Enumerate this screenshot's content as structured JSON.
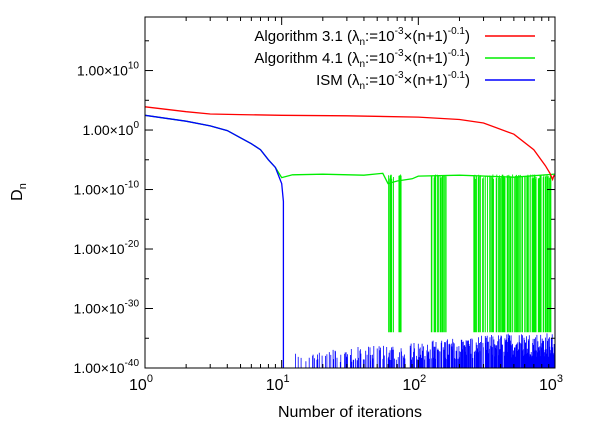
{
  "chart_data": {
    "type": "line",
    "xlabel": "Number of iterations",
    "ylabel": "D",
    "ylabel_sub": "n",
    "xscale": "log",
    "yscale": "log",
    "xlim": [
      1,
      1000
    ],
    "ylim": [
      1e-40,
      1e+19
    ],
    "x_ticks": [
      {
        "value": 1,
        "base": "10",
        "exp": "0"
      },
      {
        "value": 10,
        "base": "10",
        "exp": "1"
      },
      {
        "value": 100,
        "base": "10",
        "exp": "2"
      },
      {
        "value": 1000,
        "base": "10",
        "exp": "3"
      }
    ],
    "y_ticks": [
      {
        "exp": 10,
        "mant": "1.00×10",
        "sup": "10"
      },
      {
        "exp": 0,
        "mant": "1.00×10",
        "sup": "0"
      },
      {
        "exp": -10,
        "mant": "1.00×10",
        "sup": "-10"
      },
      {
        "exp": -20,
        "mant": "1.00×10",
        "sup": "-20"
      },
      {
        "exp": -30,
        "mant": "1.00×10",
        "sup": "-30"
      },
      {
        "exp": -40,
        "mant": "1.00×10",
        "sup": "-40"
      }
    ],
    "legend_position": "top-right",
    "series": [
      {
        "key": "alg31",
        "legend": {
          "t1": "Algorithm 3.1 (λ",
          "t2": "n",
          "t3": ":=10",
          "t4": "-3",
          "t5": "×(n+1)",
          "t6": "-0.1",
          "t7": ")"
        },
        "color": "#ff0000",
        "points": [
          [
            1,
            8000.0
          ],
          [
            2,
            1200.0
          ],
          [
            3,
            500.0
          ],
          [
            5,
            400.0
          ],
          [
            10,
            300.0
          ],
          [
            30,
            250.0
          ],
          [
            100,
            150.0
          ],
          [
            200,
            60.0
          ],
          [
            300,
            15.0
          ],
          [
            500,
            0.2
          ],
          [
            700,
            0.0005
          ],
          [
            850,
            1e-06
          ],
          [
            920,
            5e-08
          ],
          [
            960,
            5e-09
          ],
          [
            980,
            2e-08
          ],
          [
            1000,
            2e-08
          ]
        ]
      },
      {
        "key": "alg41",
        "legend": {
          "t1": "Algorithm 4.1 (λ",
          "t2": "n",
          "t3": ":=10",
          "t4": "-3",
          "t5": "×(n+1)",
          "t6": "-0.1",
          "t7": ")"
        },
        "color": "#00ee00",
        "points": [
          [
            1,
            300.0
          ],
          [
            2,
            30.0
          ],
          [
            3,
            5.0
          ],
          [
            4,
            0.8
          ],
          [
            5,
            0.05
          ],
          [
            6,
            0.005
          ],
          [
            7,
            0.0005
          ],
          [
            8,
            1e-05
          ],
          [
            9,
            5e-07
          ],
          [
            10,
            1e-08
          ],
          [
            12,
            3e-08
          ],
          [
            20,
            3e-08
          ],
          [
            40,
            3e-08
          ],
          [
            55,
            3e-08
          ],
          [
            60,
            1e-09
          ],
          [
            70,
            2e-09
          ],
          [
            90,
            1e-08
          ],
          [
            100,
            1e-08
          ],
          [
            200,
            3e-08
          ],
          [
            500,
            2e-08
          ],
          [
            1000,
            3e-08
          ]
        ]
      },
      {
        "key": "ism",
        "legend": {
          "t1": "ISM (λ",
          "t2": "n",
          "t3": ":=10",
          "t4": "-3",
          "t5": "×(n+1)",
          "t6": "-0.1",
          "t7": ")"
        },
        "color": "#0000ff",
        "points": [
          [
            1,
            300.0
          ],
          [
            2,
            30.0
          ],
          [
            3,
            5.0
          ],
          [
            4,
            0.8
          ],
          [
            5,
            0.05
          ],
          [
            6,
            0.005
          ],
          [
            7,
            0.0005
          ],
          [
            8,
            1e-05
          ],
          [
            9,
            5e-07
          ],
          [
            10,
            1e-09
          ],
          [
            10.3,
            1e-12
          ],
          [
            10.3,
            1e-40
          ]
        ]
      }
    ],
    "notes_visual": {
      "alg41_oscillation": {
        "x_ranges": [
          [
            60,
            75
          ],
          [
            120,
            160
          ],
          [
            250,
            950
          ]
        ],
        "low": 1e-34,
        "high": 1e-08
      },
      "ism_noise": {
        "x_range": [
          12,
          1000
        ],
        "floor": 1e-40,
        "max": 1e-34
      }
    }
  }
}
